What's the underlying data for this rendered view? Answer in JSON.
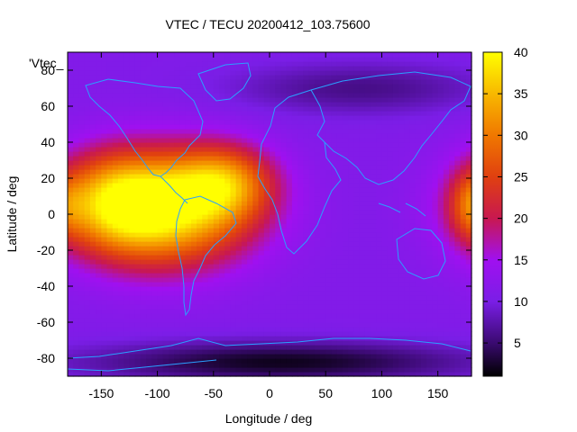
{
  "chart_data": {
    "type": "heatmap",
    "title": "VTEC / TECU 20200412_103.75600",
    "xlabel": "Longitude / deg",
    "ylabel": "Latitude / deg",
    "series_label": "'Vtec_",
    "xlim": [
      -180,
      180
    ],
    "ylim": [
      -90,
      90
    ],
    "x_ticks": [
      -150,
      -100,
      -50,
      0,
      50,
      100,
      150
    ],
    "y_ticks": [
      -80,
      -60,
      -40,
      -20,
      0,
      20,
      40,
      60,
      80
    ],
    "colorbar": {
      "min": 1,
      "max": 40,
      "ticks": [
        5,
        10,
        15,
        20,
        25,
        30,
        35,
        40
      ],
      "stops": [
        {
          "v": 1,
          "color": "#000000"
        },
        {
          "v": 5,
          "color": "#3a0a70"
        },
        {
          "v": 10,
          "color": "#7a1ee6"
        },
        {
          "v": 15,
          "color": "#a010f0"
        },
        {
          "v": 20,
          "color": "#c81850"
        },
        {
          "v": 25,
          "color": "#e04010"
        },
        {
          "v": 30,
          "color": "#f07800"
        },
        {
          "v": 35,
          "color": "#f8b800"
        },
        {
          "v": 40,
          "color": "#ffff00"
        }
      ]
    },
    "field": {
      "background_vtec": 11,
      "hotspots": [
        {
          "lon": -95,
          "lat": 3,
          "peak_vtec": 39,
          "lon_spread": 55,
          "lat_spread": 22
        },
        {
          "lon": -140,
          "lat": 8,
          "peak_vtec": 24,
          "lon_spread": 35,
          "lat_spread": 18
        },
        {
          "lon": -40,
          "lat": 18,
          "peak_vtec": 26,
          "lon_spread": 30,
          "lat_spread": 14
        },
        {
          "lon": 178,
          "lat": 5,
          "peak_vtec": 18,
          "lon_spread": 12,
          "lat_spread": 12
        }
      ],
      "lows": [
        {
          "lon": 10,
          "lat": -82,
          "depth_vtec": 9,
          "lon_spread": 120,
          "lat_spread": 8
        },
        {
          "lon": 80,
          "lat": 70,
          "depth_vtec": 5,
          "lon_spread": 80,
          "lat_spread": 10
        }
      ]
    }
  }
}
